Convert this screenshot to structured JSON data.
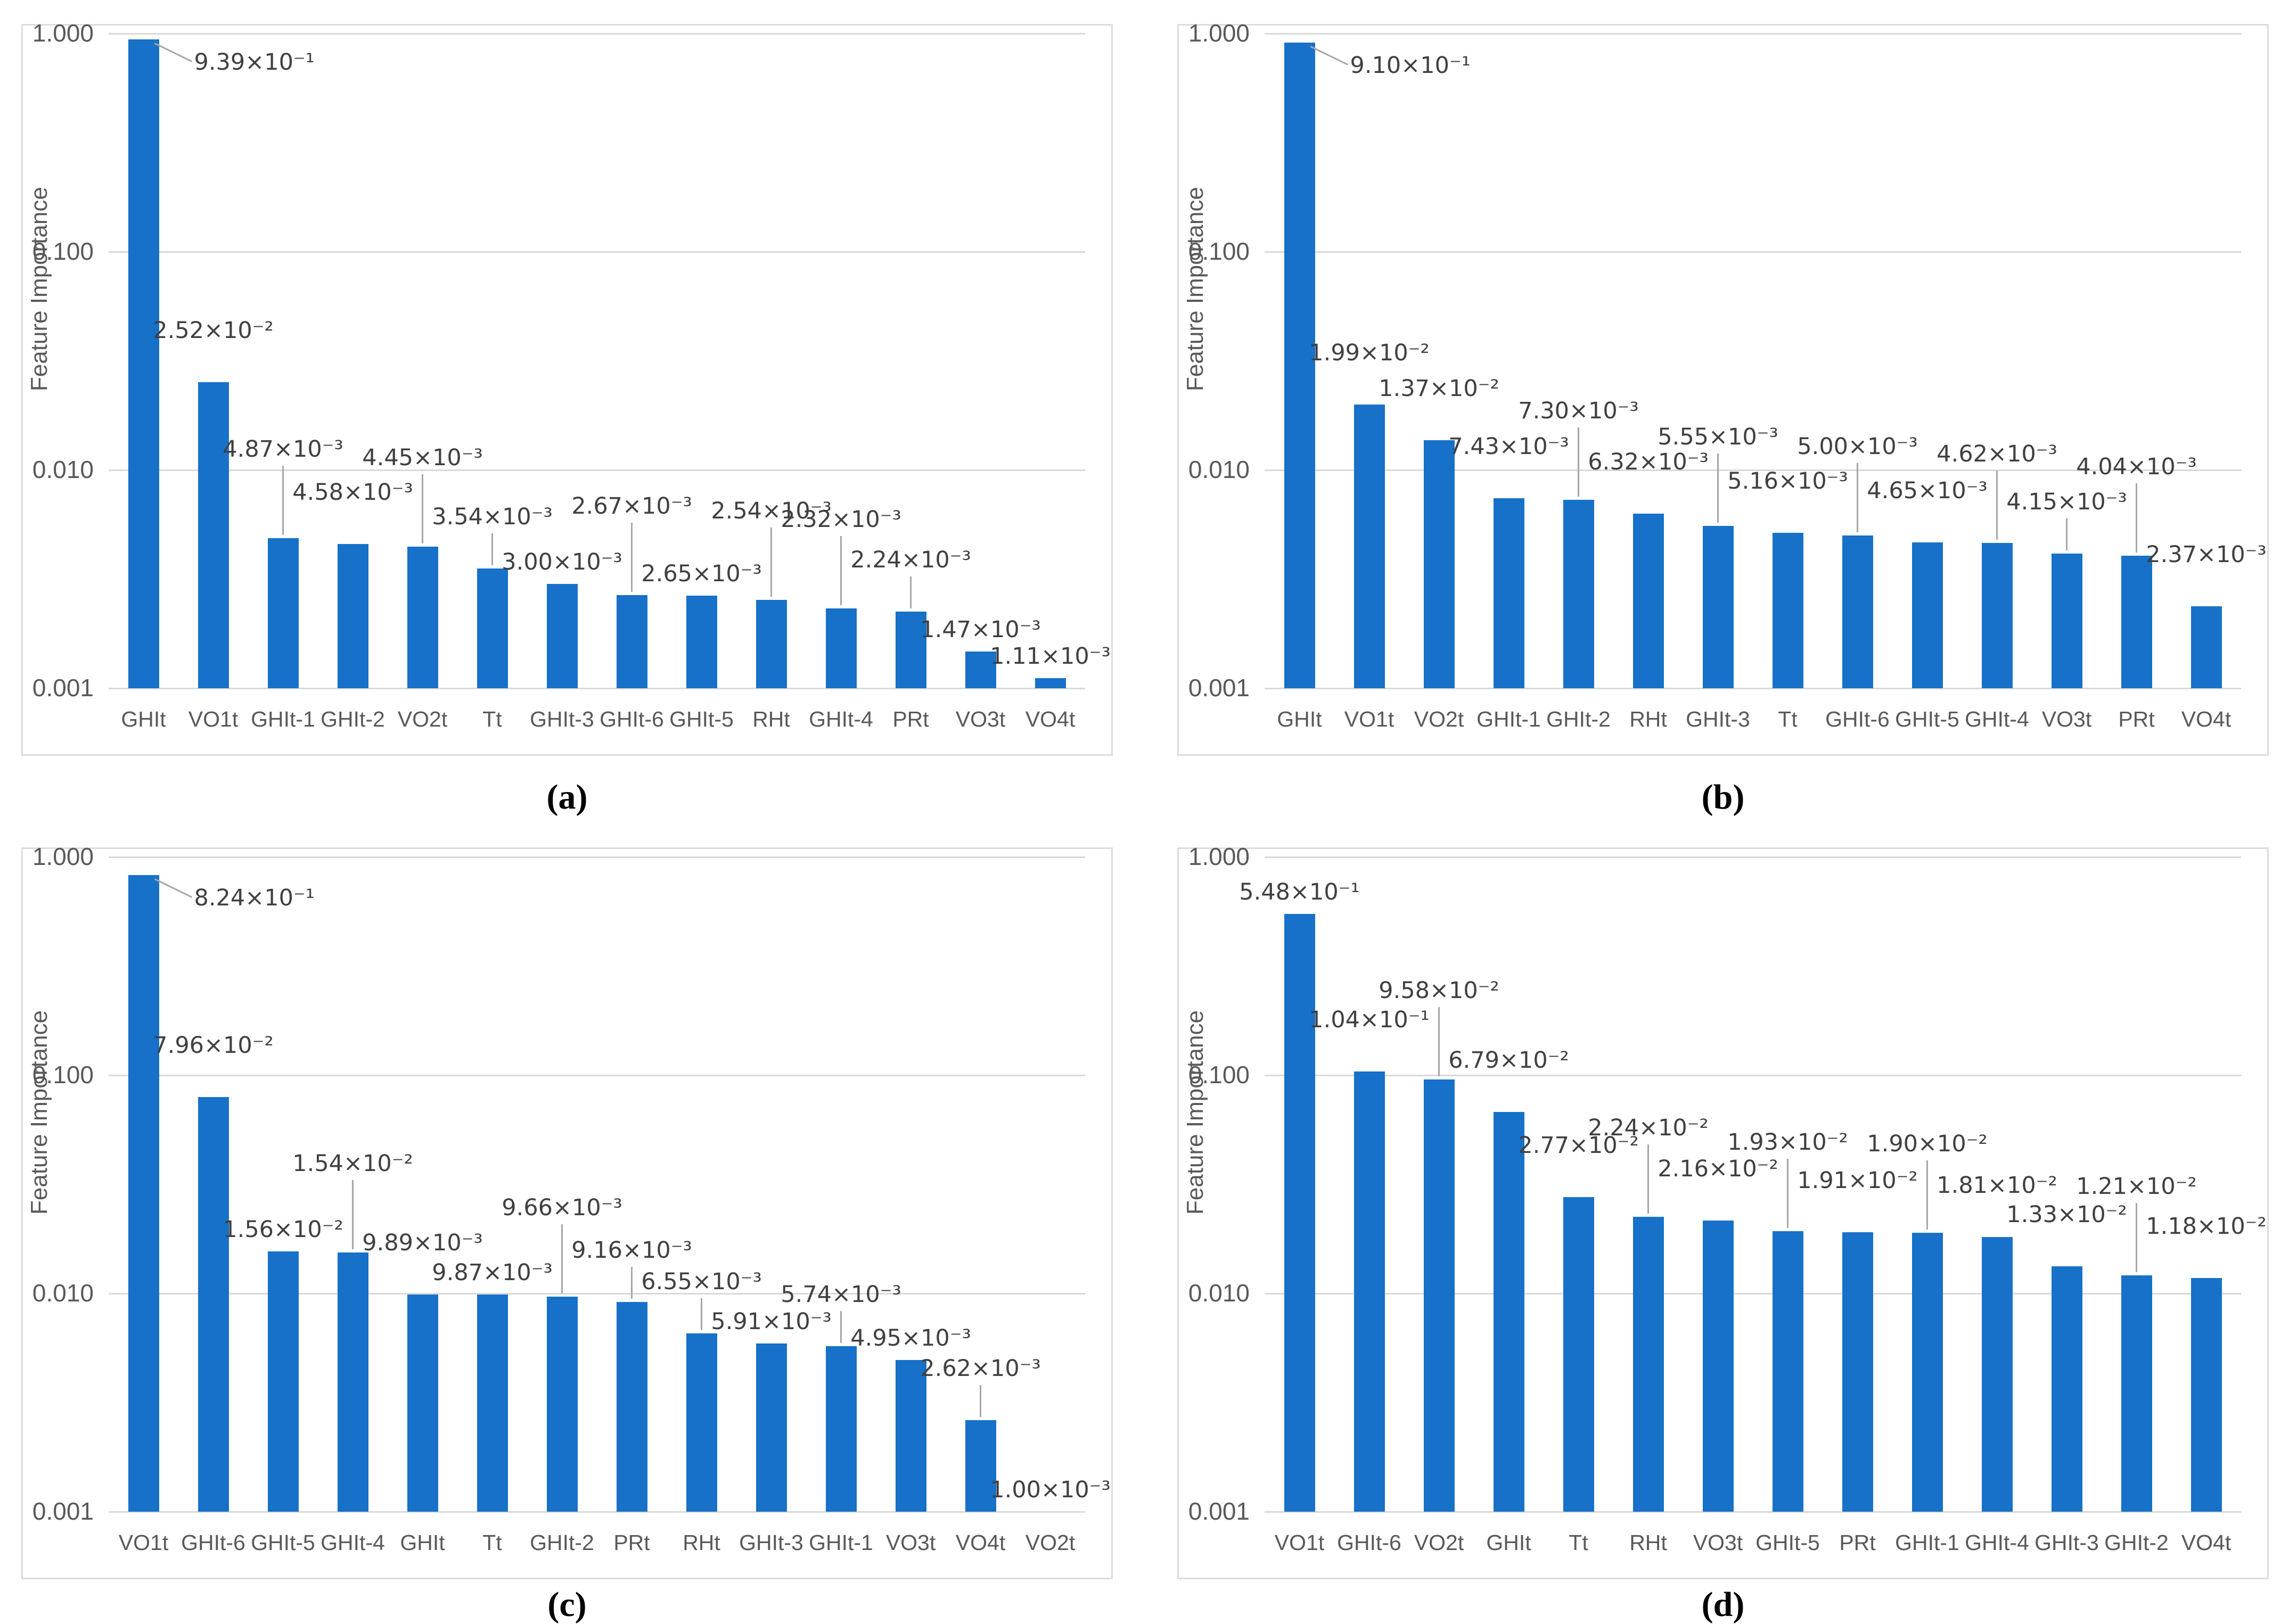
{
  "colors": {
    "bar": "#1771C8",
    "grid": "#D9D9D9",
    "tick_text": "#595959",
    "value_label_text": "#404040",
    "leader": "#A6A6A6",
    "panel_border": "#DCDCDC",
    "caption_text": "#000000"
  },
  "axis": {
    "ylabel": "Feature Importance",
    "yticks": [
      "1.000",
      "0.100",
      "0.010",
      "0.001"
    ],
    "ymin": 0.001,
    "ymax": 1.0,
    "scale": "log10",
    "grid": "horizontal"
  },
  "chart_data": [
    {
      "type": "bar",
      "caption": "(a)",
      "title": "",
      "xlabel": "",
      "ylabel": "Feature Importance",
      "yticks": [
        "1.000",
        "0.100",
        "0.010",
        "0.001"
      ],
      "ylim": [
        0.001,
        1.0
      ],
      "log_scale": true,
      "legend": "none",
      "categories": [
        "GHIt",
        "VO1t",
        "GHIt-1",
        "GHIt-2",
        "VO2t",
        "Tt",
        "GHIt-3",
        "GHIt-6",
        "GHIt-5",
        "RHt",
        "GHIt-4",
        "PRt",
        "VO3t",
        "VO4t"
      ],
      "values": [
        0.939,
        0.0252,
        0.00487,
        0.00458,
        0.00445,
        0.00354,
        0.003,
        0.00267,
        0.00265,
        0.00254,
        0.00232,
        0.00224,
        0.00147,
        0.00111
      ],
      "value_labels": [
        "9.39×10⁻¹",
        "2.52×10⁻²",
        "4.87×10⁻³",
        "4.58×10⁻³",
        "4.45×10⁻³",
        "3.54×10⁻³",
        "3.00×10⁻³",
        "2.67×10⁻³",
        "2.65×10⁻³",
        "2.54×10⁻³",
        "2.32×10⁻³",
        "2.24×10⁻³",
        "1.47×10⁻³",
        "1.11×10⁻³"
      ],
      "label_levels": [
        "s",
        1,
        2,
        1,
        2,
        1,
        0,
        2,
        0,
        2,
        2,
        1,
        0,
        0
      ],
      "label_leaders": [
        1,
        0,
        1,
        0,
        1,
        1,
        0,
        1,
        0,
        1,
        1,
        1,
        0,
        0
      ]
    },
    {
      "type": "bar",
      "caption": "(b)",
      "title": "",
      "xlabel": "",
      "ylabel": "Feature Importance",
      "yticks": [
        "1.000",
        "0.100",
        "0.010",
        "0.001"
      ],
      "ylim": [
        0.001,
        1.0
      ],
      "log_scale": true,
      "legend": "none",
      "categories": [
        "GHIt",
        "VO1t",
        "VO2t",
        "GHIt-1",
        "GHIt-2",
        "RHt",
        "GHIt-3",
        "Tt",
        "GHIt-6",
        "GHIt-5",
        "GHIt-4",
        "VO3t",
        "PRt",
        "VO4t"
      ],
      "values": [
        0.91,
        0.0199,
        0.0137,
        0.00743,
        0.0073,
        0.00632,
        0.00555,
        0.00516,
        0.005,
        0.00465,
        0.00462,
        0.00415,
        0.00404,
        0.00237
      ],
      "value_labels": [
        "9.10×10⁻¹",
        "1.99×10⁻²",
        "1.37×10⁻²",
        "7.43×10⁻³",
        "7.30×10⁻³",
        "6.32×10⁻³",
        "5.55×10⁻³",
        "5.16×10⁻³",
        "5.00×10⁻³",
        "4.65×10⁻³",
        "4.62×10⁻³",
        "4.15×10⁻³",
        "4.04×10⁻³",
        "2.37×10⁻³"
      ],
      "label_levels": [
        "s",
        1,
        1,
        1,
        2,
        1,
        2,
        1,
        2,
        1,
        2,
        1,
        2,
        1
      ],
      "label_leaders": [
        1,
        0,
        0,
        0,
        1,
        0,
        1,
        0,
        1,
        0,
        1,
        1,
        1,
        0
      ]
    },
    {
      "type": "bar",
      "caption": "(c)",
      "title": "",
      "xlabel": "",
      "ylabel": "Feature Importance",
      "yticks": [
        "1.000",
        "0.100",
        "0.010",
        "0.001"
      ],
      "ylim": [
        0.001,
        1.0
      ],
      "log_scale": true,
      "legend": "none",
      "categories": [
        "VO1t",
        "GHIt-6",
        "GHIt-5",
        "GHIt-4",
        "GHIt",
        "Tt",
        "GHIt-2",
        "PRt",
        "RHt",
        "GHIt-3",
        "GHIt-1",
        "VO3t",
        "VO4t",
        "VO2t"
      ],
      "values": [
        0.824,
        0.0796,
        0.0156,
        0.0154,
        0.00989,
        0.00987,
        0.00966,
        0.00916,
        0.00655,
        0.00591,
        0.00574,
        0.00495,
        0.00262,
        0.001
      ],
      "value_labels": [
        "8.24×10⁻¹",
        "7.96×10⁻²",
        "1.56×10⁻²",
        "1.54×10⁻²",
        "9.89×10⁻³",
        "9.87×10⁻³",
        "9.66×10⁻³",
        "9.16×10⁻³",
        "6.55×10⁻³",
        "5.91×10⁻³",
        "5.74×10⁻³",
        "4.95×10⁻³",
        "2.62×10⁻³",
        "1.00×10⁻³"
      ],
      "label_levels": [
        "s",
        1,
        0,
        2,
        1,
        0,
        2,
        1,
        1,
        0,
        1,
        0,
        1,
        0
      ],
      "label_leaders": [
        1,
        0,
        0,
        1,
        0,
        0,
        1,
        1,
        1,
        0,
        1,
        0,
        1,
        0
      ]
    },
    {
      "type": "bar",
      "caption": "(d)",
      "title": "",
      "xlabel": "",
      "ylabel": "Feature Importance",
      "yticks": [
        "1.000",
        "0.100",
        "0.010",
        "0.001"
      ],
      "ylim": [
        0.001,
        1.0
      ],
      "log_scale": true,
      "legend": "none",
      "categories": [
        "VO1t",
        "GHIt-6",
        "VO2t",
        "GHIt",
        "Tt",
        "RHt",
        "VO3t",
        "GHIt-5",
        "PRt",
        "GHIt-1",
        "GHIt-4",
        "GHIt-3",
        "GHIt-2",
        "VO4t"
      ],
      "values": [
        0.548,
        0.104,
        0.0958,
        0.0679,
        0.0277,
        0.0224,
        0.0216,
        0.0193,
        0.0191,
        0.019,
        0.0181,
        0.0133,
        0.0121,
        0.0118
      ],
      "value_labels": [
        "5.48×10⁻¹",
        "1.04×10⁻¹",
        "9.58×10⁻²",
        "6.79×10⁻²",
        "2.77×10⁻²",
        "2.24×10⁻²",
        "2.16×10⁻²",
        "1.93×10⁻²",
        "1.91×10⁻²",
        "1.90×10⁻²",
        "1.81×10⁻²",
        "1.33×10⁻²",
        "1.21×10⁻²",
        "1.18×10⁻²"
      ],
      "label_levels": [
        0,
        1,
        2,
        1,
        1,
        2,
        1,
        2,
        1,
        2,
        1,
        1,
        2,
        1
      ],
      "label_leaders": [
        0,
        0,
        1,
        0,
        0,
        1,
        0,
        1,
        0,
        1,
        0,
        0,
        1,
        0
      ]
    }
  ]
}
